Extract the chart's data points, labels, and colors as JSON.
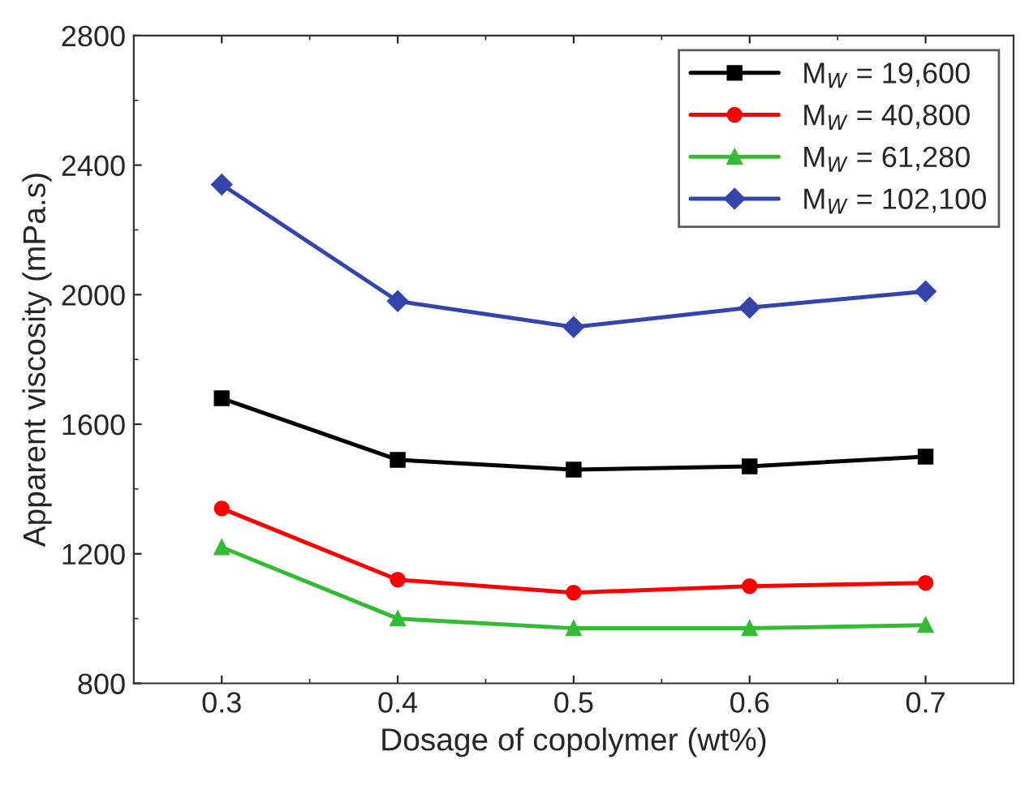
{
  "chart_data": {
    "type": "line",
    "xlabel": "Dosage of copolymer (wt%)",
    "ylabel": "Apparent viscosity (mPa.s)",
    "x": [
      0.3,
      0.4,
      0.5,
      0.6,
      0.7
    ],
    "xlim": [
      0.25,
      0.75
    ],
    "xticks": [
      0.3,
      0.4,
      0.5,
      0.6,
      0.7
    ],
    "ylim": [
      800,
      2800
    ],
    "yticks": [
      800,
      1200,
      1600,
      2000,
      2400,
      2800
    ],
    "grid": false,
    "legend": "top right",
    "line_style": "solid",
    "series": [
      {
        "name": "M$_{W}$ = 19,600",
        "color": "#000000",
        "marker": "square",
        "values": [
          1680,
          1490,
          1460,
          1470,
          1500
        ]
      },
      {
        "name": "M$_{W}$ = 40,800",
        "color": "#ff0000",
        "marker": "circle",
        "values": [
          1340,
          1120,
          1080,
          1100,
          1110
        ]
      },
      {
        "name": "M$_{W}$ = 61,280",
        "color": "#33bb33",
        "marker": "triangle",
        "values": [
          1220,
          1000,
          970,
          970,
          980
        ]
      },
      {
        "name": "M$_{W}$ = 102,100",
        "color": "#3344aa",
        "marker": "diamond",
        "values": [
          2340,
          1980,
          1900,
          1960,
          2010
        ]
      }
    ]
  }
}
